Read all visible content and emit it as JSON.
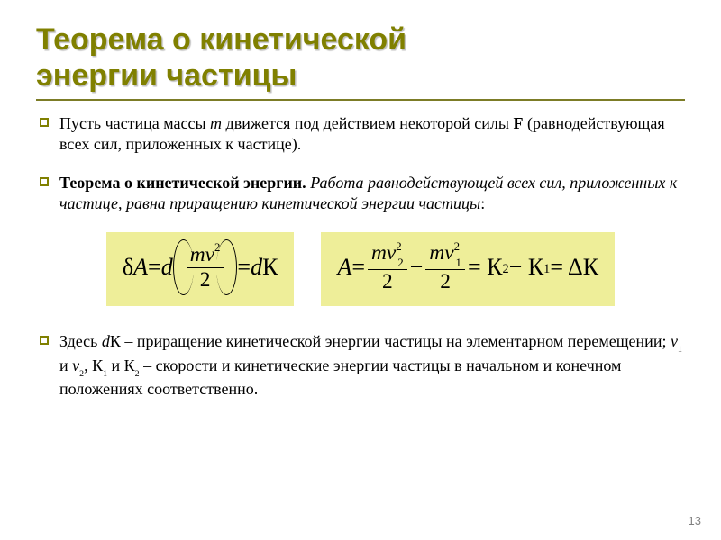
{
  "colors": {
    "accent": "#808000",
    "underline": "#7c7c26",
    "equation_bg": "#eeee99",
    "text": "#000000",
    "page_num": "#808080",
    "background": "#ffffff"
  },
  "typography": {
    "title_family": "Arial",
    "title_size_pt": 26,
    "body_family": "Times New Roman",
    "body_size_pt": 14,
    "equation_size_pt": 20
  },
  "title": {
    "line1": "Теорема о кинетической",
    "line2": " энергии частицы"
  },
  "bullets": {
    "b1_pre": "Пусть частица массы ",
    "b1_m": "m",
    "b1_mid": " движется под действием некоторой силы ",
    "b1_F": "F",
    "b1_post": " (равнодействующая всех сил, приложенных к частице).",
    "b2_strong": "Теорема о кинетической энергии.",
    "b2_it": " Работа равнодействующей всех сил, приложенных к частице, равна приращению кинетической энергии частицы",
    "b2_post": ":",
    "b3_pre": "Здесь ",
    "b3_dK": "d",
    "b3_K": "К",
    "b3_mid1": " – приращение кинетической энергии частицы на элементарном перемещении; ",
    "b3_v1": "v",
    "b3_s1": "1 ",
    "b3_and": " и ",
    "b3_v2": "v",
    "b3_s2": "2",
    "b3_mid2": ", К",
    "b3_s3": "1",
    "b3_mid3": " и К",
    "b3_s4": "2",
    "b3_post": " – скорости и кинетические энергии частицы в начальном и конечном положениях соответственно."
  },
  "eq": {
    "box1": {
      "deltaA": "δ",
      "A": "A",
      "eq": " = ",
      "d": "d",
      "num_mv": "mv",
      "num_sup": "2",
      "den": "2",
      "eq2": " = ",
      "d2": "d",
      "K": "К"
    },
    "box2": {
      "A": "A",
      "eq": " = ",
      "n1_mv": "mv",
      "n1_sub": "2",
      "n1_sup": "2",
      "d1": "2",
      "minus": " − ",
      "n2_mv": "mv",
      "n2_sub": "1",
      "n2_sup": "2",
      "d2": "2",
      "eq2": " = К",
      "k2s": "2",
      "minus2": " − К",
      "k1s": "1",
      "eq3": " = ΔК"
    }
  },
  "page_number": "13"
}
